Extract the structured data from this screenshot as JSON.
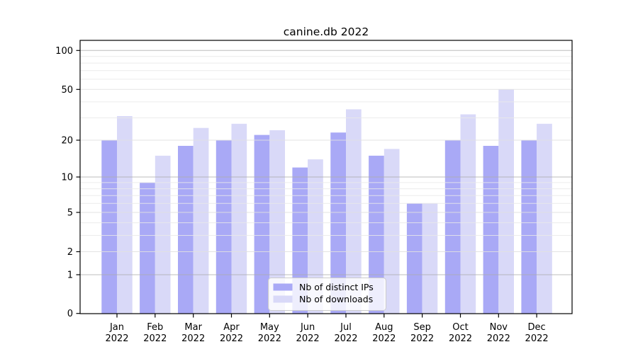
{
  "figure": {
    "title": "canine.db 2022",
    "background": "#ffffff"
  },
  "chart_data": {
    "type": "bar",
    "title": "canine.db 2022",
    "xlabel": "",
    "ylabel": "",
    "yscale": "log1p",
    "ylim": [
      0,
      120
    ],
    "grid": true,
    "legend_position": "lower center",
    "categories": [
      "Jan 2022",
      "Feb 2022",
      "Mar 2022",
      "Apr 2022",
      "May 2022",
      "Jun 2022",
      "Jul 2022",
      "Aug 2022",
      "Sep 2022",
      "Oct 2022",
      "Nov 2022",
      "Dec 2022"
    ],
    "series": [
      {
        "name": "Nb of distinct IPs",
        "slug": "distinct-ips",
        "color": "#a9a9f6",
        "values": [
          20,
          9,
          18,
          20,
          22,
          12,
          23,
          15,
          6,
          20,
          18,
          20
        ]
      },
      {
        "name": "Nb of downloads",
        "slug": "downloads",
        "color": "#d9d9f8",
        "values": [
          31,
          15,
          25,
          27,
          24,
          14,
          35,
          17,
          6,
          32,
          50,
          27
        ]
      }
    ],
    "y_ticks": [
      100,
      50,
      20,
      10,
      5,
      2,
      1,
      0
    ],
    "grid_major": [
      1,
      10,
      100
    ],
    "grid_light": [
      2,
      5,
      20,
      50
    ],
    "grid_minor": [
      3,
      4,
      6,
      7,
      8,
      9,
      30,
      40,
      60,
      70,
      80,
      90
    ],
    "colors": {
      "spine": "#000000",
      "grid_major": "#ababab",
      "grid_light": "#e0e0e0",
      "grid_minor": "#e9e9e9",
      "legend_border": "#cccccc"
    }
  }
}
